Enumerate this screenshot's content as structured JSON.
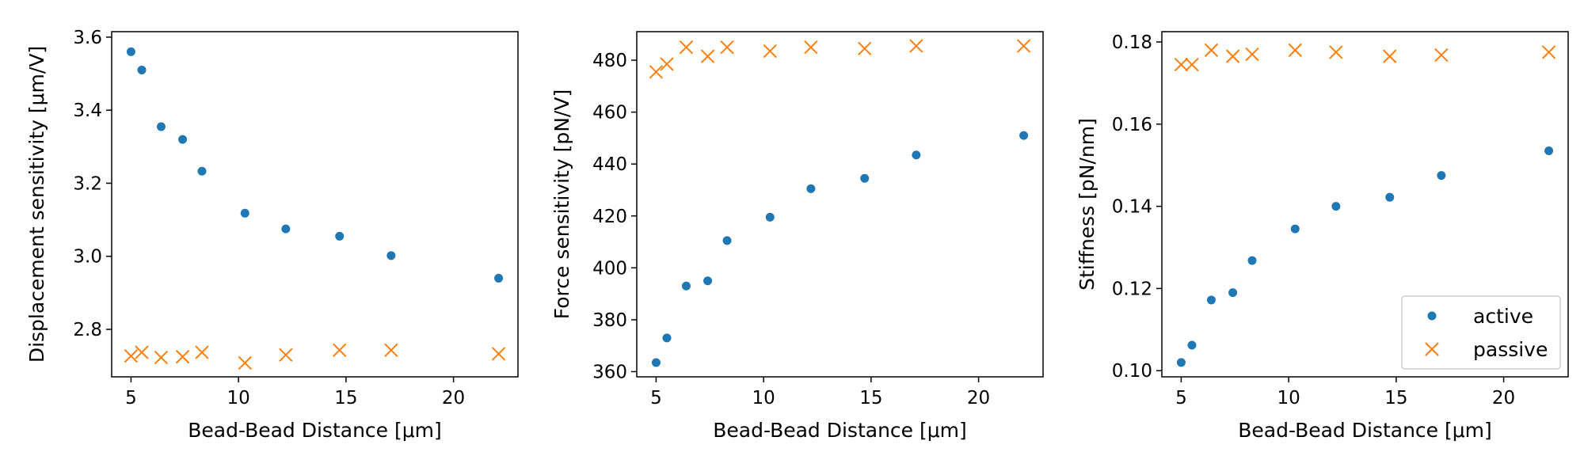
{
  "chart_data": [
    {
      "type": "scatter",
      "xlabel": "Bead-Bead Distance [μm]",
      "ylabel": "Displacement sensitivity [μm/V]",
      "xlim": [
        4.1,
        23.0
      ],
      "ylim": [
        2.67,
        3.615
      ],
      "xticks": [
        5,
        10,
        15,
        20
      ],
      "yticks": [
        2.8,
        3.0,
        3.2,
        3.4,
        3.6
      ],
      "ytick_labels": [
        "2.8",
        "3.0",
        "3.2",
        "3.4",
        "3.6"
      ],
      "x": [
        5.0,
        5.5,
        6.4,
        7.4,
        8.3,
        10.3,
        12.2,
        14.7,
        17.1,
        22.1
      ],
      "series": [
        {
          "name": "active",
          "marker": "dot",
          "color": "#1f77b4",
          "values": [
            3.56,
            3.51,
            3.355,
            3.32,
            3.233,
            3.118,
            3.075,
            3.055,
            3.002,
            2.94
          ]
        },
        {
          "name": "passive",
          "marker": "x",
          "color": "#ff7f0e",
          "values": [
            2.727,
            2.737,
            2.723,
            2.725,
            2.737,
            2.708,
            2.73,
            2.743,
            2.743,
            2.733
          ]
        }
      ],
      "legend": false
    },
    {
      "type": "scatter",
      "xlabel": "Bead-Bead Distance [μm]",
      "ylabel": "Force sensitivity [pN/V]",
      "xlim": [
        4.1,
        23.0
      ],
      "ylim": [
        358,
        491
      ],
      "xticks": [
        5,
        10,
        15,
        20
      ],
      "yticks": [
        360,
        380,
        400,
        420,
        440,
        460,
        480
      ],
      "ytick_labels": [
        "360",
        "380",
        "400",
        "420",
        "440",
        "460",
        "480"
      ],
      "x": [
        5.0,
        5.5,
        6.4,
        7.4,
        8.3,
        10.3,
        12.2,
        14.7,
        17.1,
        22.1
      ],
      "series": [
        {
          "name": "active",
          "marker": "dot",
          "color": "#1f77b4",
          "values": [
            363.5,
            373.0,
            393.0,
            395.0,
            410.5,
            419.5,
            430.5,
            434.5,
            443.5,
            451.0
          ]
        },
        {
          "name": "passive",
          "marker": "x",
          "color": "#ff7f0e",
          "values": [
            475.5,
            478.5,
            485.0,
            481.5,
            485.0,
            483.5,
            485.0,
            484.5,
            485.5,
            485.5
          ]
        }
      ],
      "legend": false
    },
    {
      "type": "scatter",
      "xlabel": "Bead-Bead Distance [μm]",
      "ylabel": "Stiffness [pN/nm]",
      "xlim": [
        4.1,
        23.0
      ],
      "ylim": [
        0.0985,
        0.1825
      ],
      "xticks": [
        5,
        10,
        15,
        20
      ],
      "yticks": [
        0.1,
        0.12,
        0.14,
        0.16,
        0.18
      ],
      "ytick_labels": [
        "0.10",
        "0.12",
        "0.14",
        "0.16",
        "0.18"
      ],
      "x": [
        5.0,
        5.5,
        6.4,
        7.4,
        8.3,
        10.3,
        12.2,
        14.7,
        17.1,
        22.1
      ],
      "series": [
        {
          "name": "active",
          "marker": "dot",
          "color": "#1f77b4",
          "values": [
            0.102,
            0.1062,
            0.1172,
            0.119,
            0.1268,
            0.1345,
            0.14,
            0.1422,
            0.1475,
            0.1535
          ]
        },
        {
          "name": "passive",
          "marker": "x",
          "color": "#ff7f0e",
          "values": [
            0.1745,
            0.1745,
            0.178,
            0.1765,
            0.177,
            0.178,
            0.1775,
            0.1765,
            0.1768,
            0.1775
          ]
        }
      ],
      "legend": true,
      "legend_position": "lower-right"
    }
  ]
}
